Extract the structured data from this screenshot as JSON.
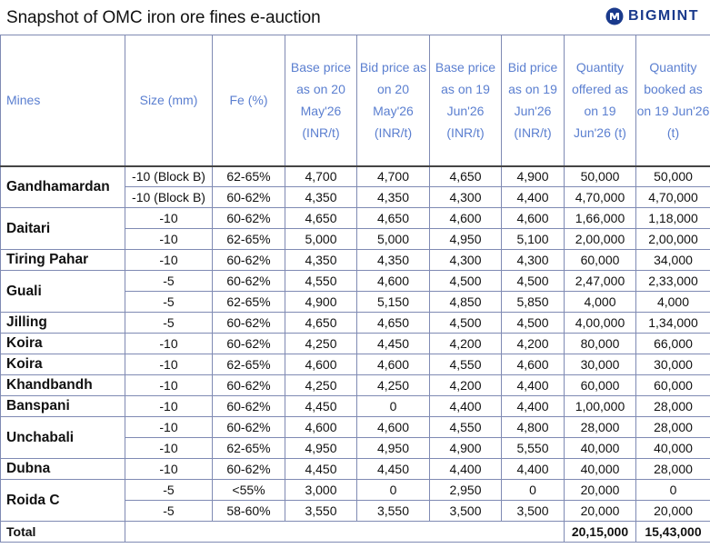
{
  "header": {
    "title": "Snapshot of OMC iron ore fines e-auction",
    "brand": "BIGMINT",
    "brand_color": "#1a3a8c",
    "logo_icon": "bigmint-logo-icon"
  },
  "table": {
    "columns": [
      "Mines",
      "Size (mm)",
      "Fe (%)",
      "Base price as on 20 May'26 (INR/t)",
      "Bid price as on 20 May'26 (INR/t)",
      "Base price as on 19 Jun'26 (INR/t)",
      "Bid price as on 19 Jun'26 (INR/t)",
      "Quantity offered as on 19 Jun'26 (t)",
      "Quantity booked as on 19 Jun'26 (t)"
    ],
    "header_color": "#5b7fd0",
    "mines": [
      {
        "name": "Gandhamardan",
        "rows": [
          [
            "-10 (Block B)",
            "62-65%",
            "4,700",
            "4,700",
            "4,650",
            "4,900",
            "50,000",
            "50,000"
          ],
          [
            "-10 (Block B)",
            "60-62%",
            "4,350",
            "4,350",
            "4,300",
            "4,400",
            "4,70,000",
            "4,70,000"
          ]
        ]
      },
      {
        "name": "Daitari",
        "rows": [
          [
            "-10",
            "60-62%",
            "4,650",
            "4,650",
            "4,600",
            "4,600",
            "1,66,000",
            "1,18,000"
          ],
          [
            "-10",
            "62-65%",
            "5,000",
            "5,000",
            "4,950",
            "5,100",
            "2,00,000",
            "2,00,000"
          ]
        ]
      },
      {
        "name": "Tiring Pahar",
        "rows": [
          [
            "-10",
            "60-62%",
            "4,350",
            "4,350",
            "4,300",
            "4,300",
            "60,000",
            "34,000"
          ]
        ]
      },
      {
        "name": "Guali",
        "rows": [
          [
            "-5",
            "60-62%",
            "4,550",
            "4,600",
            "4,500",
            "4,500",
            "2,47,000",
            "2,33,000"
          ],
          [
            "-5",
            "62-65%",
            "4,900",
            "5,150",
            "4,850",
            "5,850",
            "4,000",
            "4,000"
          ]
        ]
      },
      {
        "name": "Jilling",
        "rows": [
          [
            "-5",
            "60-62%",
            "4,650",
            "4,650",
            "4,500",
            "4,500",
            "4,00,000",
            "1,34,000"
          ]
        ]
      },
      {
        "name": "Koira",
        "rows": [
          [
            "-10",
            "60-62%",
            "4,250",
            "4,450",
            "4,200",
            "4,200",
            "80,000",
            "66,000"
          ]
        ]
      },
      {
        "name": "Koira",
        "rows": [
          [
            "-10",
            "62-65%",
            "4,600",
            "4,600",
            "4,550",
            "4,600",
            "30,000",
            "30,000"
          ]
        ]
      },
      {
        "name": "Khandbandh",
        "rows": [
          [
            "-10",
            "60-62%",
            "4,250",
            "4,250",
            "4,200",
            "4,400",
            "60,000",
            "60,000"
          ]
        ]
      },
      {
        "name": "Banspani",
        "rows": [
          [
            "-10",
            "60-62%",
            "4,450",
            "0",
            "4,400",
            "4,400",
            "1,00,000",
            "28,000"
          ]
        ]
      },
      {
        "name": "Unchabali",
        "rows": [
          [
            "-10",
            "60-62%",
            "4,600",
            "4,600",
            "4,550",
            "4,800",
            "28,000",
            "28,000"
          ],
          [
            "-10",
            "62-65%",
            "4,950",
            "4,950",
            "4,900",
            "5,550",
            "40,000",
            "40,000"
          ]
        ]
      },
      {
        "name": "Dubna",
        "rows": [
          [
            "-10",
            "60-62%",
            "4,450",
            "4,450",
            "4,400",
            "4,400",
            "40,000",
            "28,000"
          ]
        ]
      },
      {
        "name": "Roida C",
        "rows": [
          [
            "-5",
            "<55%",
            "3,000",
            "0",
            "2,950",
            "0",
            "20,000",
            "0"
          ],
          [
            "-5",
            "58-60%",
            "3,550",
            "3,550",
            "3,500",
            "3,500",
            "20,000",
            "20,000"
          ]
        ]
      }
    ],
    "total": {
      "label": "Total",
      "offered": "20,15,000",
      "booked": "15,43,000"
    }
  }
}
